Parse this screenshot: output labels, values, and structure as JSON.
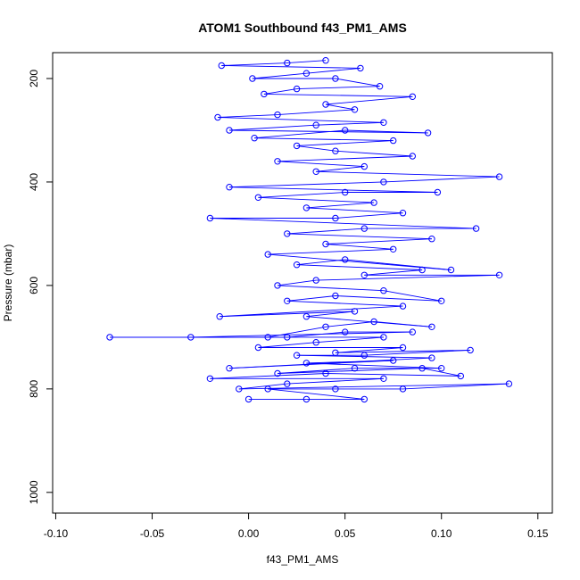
{
  "chart_data": {
    "type": "scatter",
    "title": "ATOM1 Southbound f43_PM1_AMS",
    "xlabel": "f43_PM1_AMS",
    "ylabel": "Pressure (mbar)",
    "xlim": [
      -0.1,
      0.15
    ],
    "ylim": [
      1040,
      150
    ],
    "y_reversed": true,
    "x_ticks": [
      "-0.10",
      "-0.05",
      "0.00",
      "0.05",
      "0.10",
      "0.15"
    ],
    "y_ticks": [
      "200",
      "400",
      "600",
      "800",
      "1000"
    ],
    "x_tick_values": [
      -0.1,
      -0.05,
      0.0,
      0.05,
      0.1,
      0.15
    ],
    "y_tick_values": [
      200,
      400,
      600,
      800,
      1000
    ],
    "grid": false,
    "legend": "none",
    "colors": {
      "series": "#0000ff",
      "axes": "#000000",
      "background": "#ffffff"
    },
    "series": [
      {
        "marker": "open-circle",
        "connected": true,
        "points": [
          [
            0.0,
            820
          ],
          [
            0.03,
            820
          ],
          [
            0.06,
            820
          ],
          [
            0.01,
            800
          ],
          [
            0.045,
            800
          ],
          [
            0.08,
            800
          ],
          [
            0.135,
            790
          ],
          [
            -0.005,
            800
          ],
          [
            0.02,
            790
          ],
          [
            0.07,
            780
          ],
          [
            -0.02,
            780
          ],
          [
            0.04,
            770
          ],
          [
            0.11,
            775
          ],
          [
            0.09,
            760
          ],
          [
            0.015,
            770
          ],
          [
            0.055,
            760
          ],
          [
            0.1,
            760
          ],
          [
            0.03,
            750
          ],
          [
            0.075,
            745
          ],
          [
            -0.01,
            760
          ],
          [
            0.095,
            740
          ],
          [
            0.025,
            735
          ],
          [
            0.06,
            735
          ],
          [
            0.115,
            725
          ],
          [
            0.045,
            730
          ],
          [
            0.08,
            720
          ],
          [
            0.005,
            720
          ],
          [
            0.035,
            710
          ],
          [
            0.07,
            700
          ],
          [
            -0.072,
            700
          ],
          [
            0.02,
            700
          ],
          [
            0.05,
            690
          ],
          [
            0.085,
            690
          ],
          [
            -0.03,
            700
          ],
          [
            0.01,
            700
          ],
          [
            0.04,
            680
          ],
          [
            0.065,
            670
          ],
          [
            0.095,
            680
          ],
          [
            0.03,
            660
          ],
          [
            0.055,
            650
          ],
          [
            -0.015,
            660
          ],
          [
            0.08,
            640
          ],
          [
            0.02,
            630
          ],
          [
            0.045,
            620
          ],
          [
            0.1,
            630
          ],
          [
            0.07,
            610
          ],
          [
            0.015,
            600
          ],
          [
            0.035,
            590
          ],
          [
            0.13,
            580
          ],
          [
            0.06,
            580
          ],
          [
            0.09,
            570
          ],
          [
            0.025,
            560
          ],
          [
            0.05,
            550
          ],
          [
            0.105,
            570
          ],
          [
            0.01,
            540
          ],
          [
            0.075,
            530
          ],
          [
            0.04,
            520
          ],
          [
            0.095,
            510
          ],
          [
            0.02,
            500
          ],
          [
            0.06,
            490
          ],
          [
            0.118,
            490
          ],
          [
            -0.02,
            470
          ],
          [
            0.045,
            470
          ],
          [
            0.08,
            460
          ],
          [
            0.03,
            450
          ],
          [
            0.065,
            440
          ],
          [
            0.005,
            430
          ],
          [
            0.05,
            420
          ],
          [
            0.098,
            420
          ],
          [
            -0.01,
            410
          ],
          [
            0.07,
            400
          ],
          [
            0.13,
            390
          ],
          [
            0.035,
            380
          ],
          [
            0.06,
            370
          ],
          [
            0.015,
            360
          ],
          [
            0.085,
            350
          ],
          [
            0.045,
            340
          ],
          [
            0.025,
            330
          ],
          [
            0.075,
            320
          ],
          [
            0.003,
            315
          ],
          [
            0.05,
            300
          ],
          [
            0.093,
            305
          ],
          [
            -0.01,
            300
          ],
          [
            0.035,
            290
          ],
          [
            0.07,
            285
          ],
          [
            -0.016,
            275
          ],
          [
            0.015,
            270
          ],
          [
            0.055,
            260
          ],
          [
            0.04,
            250
          ],
          [
            0.085,
            235
          ],
          [
            0.008,
            230
          ],
          [
            0.025,
            220
          ],
          [
            0.068,
            215
          ],
          [
            0.045,
            200
          ],
          [
            0.002,
            200
          ],
          [
            0.03,
            190
          ],
          [
            0.058,
            180
          ],
          [
            -0.014,
            175
          ],
          [
            0.02,
            170
          ],
          [
            0.04,
            165
          ]
        ]
      }
    ]
  }
}
